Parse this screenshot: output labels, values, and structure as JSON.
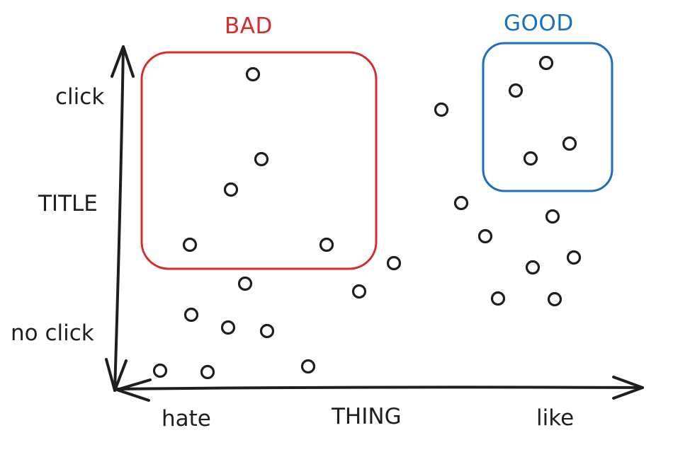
{
  "colors": {
    "ink": "#1e1e1e",
    "bad": "#d92b2b",
    "good": "#1b6ec2"
  },
  "diagram": {
    "y_axis": {
      "top_label": "click",
      "middle_label": "TITLE",
      "bottom_label": "no click"
    },
    "x_axis": {
      "left_label": "hate",
      "middle_label": "THING",
      "right_label": "like"
    },
    "regions": {
      "bad": {
        "title": "BAD"
      },
      "good": {
        "title": "GOOD"
      }
    }
  }
}
